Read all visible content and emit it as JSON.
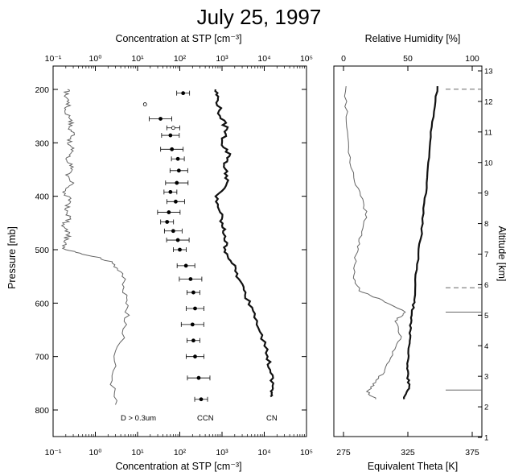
{
  "chart_data": [
    {
      "type": "line",
      "title": "July 25, 1997",
      "x_top_label": "Concentration at STP [cm⁻³]",
      "x_bottom_label": "Concentration at STP [cm⁻³]",
      "ylabel": "Pressure [mb]",
      "x_scale": "log",
      "xlim": [
        0.1,
        100000
      ],
      "ylim": [
        850,
        180
      ],
      "x_ticks": [
        0.1,
        1,
        10,
        100,
        1000,
        10000,
        100000
      ],
      "x_tick_labels": [
        "10⁻¹",
        "10⁰",
        "10¹",
        "10²",
        "10³",
        "10⁴",
        "10⁵"
      ],
      "y_ticks": [
        200,
        300,
        400,
        500,
        600,
        700,
        800
      ],
      "annotations": [
        "D > 0.3um",
        "CCN",
        "CN"
      ],
      "series": [
        {
          "name": "D > 0.3um",
          "style": "thin-line",
          "points": [
            [
              0.22,
              200
            ],
            [
              0.2,
              210
            ],
            [
              0.24,
              225
            ],
            [
              0.19,
              240
            ],
            [
              0.28,
              258
            ],
            [
              0.24,
              272
            ],
            [
              0.32,
              285
            ],
            [
              0.22,
              300
            ],
            [
              0.3,
              315
            ],
            [
              0.2,
              330
            ],
            [
              0.3,
              345
            ],
            [
              0.2,
              360
            ],
            [
              0.28,
              378
            ],
            [
              0.17,
              392
            ],
            [
              0.26,
              410
            ],
            [
              0.19,
              425
            ],
            [
              0.25,
              440
            ],
            [
              0.16,
              455
            ],
            [
              0.24,
              470
            ],
            [
              0.18,
              485
            ],
            [
              0.2,
              500
            ],
            [
              0.6,
              510
            ],
            [
              2.5,
              525
            ],
            [
              4.5,
              545
            ],
            [
              4.5,
              575
            ],
            [
              6,
              605
            ],
            [
              5.5,
              640
            ],
            [
              3,
              690
            ],
            [
              2.5,
              745
            ],
            [
              3,
              790
            ]
          ]
        },
        {
          "name": "CCN",
          "style": "points-errorbars",
          "points": [
            [
              120,
              207
            ],
            [
              15,
              228
            ],
            [
              35,
              255
            ],
            [
              70,
              272
            ],
            [
              60,
              286
            ],
            [
              65,
              312
            ],
            [
              90,
              330
            ],
            [
              95,
              352
            ],
            [
              85,
              375
            ],
            [
              60,
              392
            ],
            [
              80,
              410
            ],
            [
              55,
              430
            ],
            [
              50,
              448
            ],
            [
              70,
              465
            ],
            [
              90,
              482
            ],
            [
              100,
              500
            ],
            [
              140,
              530
            ],
            [
              180,
              555
            ],
            [
              210,
              580
            ],
            [
              230,
              610
            ],
            [
              200,
              640
            ],
            [
              210,
              670
            ],
            [
              230,
              700
            ],
            [
              280,
              740
            ],
            [
              320,
              780
            ]
          ]
        },
        {
          "name": "CN",
          "style": "thick-line",
          "points": [
            [
              700,
              200
            ],
            [
              800,
              220
            ],
            [
              900,
              250
            ],
            [
              1300,
              275
            ],
            [
              1000,
              300
            ],
            [
              1500,
              325
            ],
            [
              1100,
              345
            ],
            [
              1400,
              370
            ],
            [
              700,
              400
            ],
            [
              900,
              430
            ],
            [
              1000,
              455
            ],
            [
              1200,
              475
            ],
            [
              1200,
              500
            ],
            [
              1700,
              525
            ],
            [
              2500,
              555
            ],
            [
              3500,
              585
            ],
            [
              6000,
              620
            ],
            [
              9000,
              660
            ],
            [
              12000,
              700
            ],
            [
              14000,
              730
            ],
            [
              16000,
              760
            ],
            [
              14000,
              775
            ]
          ]
        }
      ]
    },
    {
      "type": "line",
      "x_top_label": "Relative Humidity [%]",
      "x_bottom_label": "Equivalent Theta [K]",
      "ylabel_right": "Altitude [km]",
      "x_top_ticks": [
        0,
        50,
        100
      ],
      "x_bottom_ticks": [
        275,
        325,
        375
      ],
      "y_right_ticks": [
        1,
        2,
        3,
        4,
        5,
        6,
        7,
        8,
        9,
        10,
        11,
        12,
        13
      ],
      "xlim_rh": [
        0,
        100
      ],
      "xlim_theta": [
        275,
        375
      ],
      "series": [
        {
          "name": "Relative Humidity [%]",
          "style": "thin-line",
          "points": [
            [
              2,
              12.5
            ],
            [
              2,
              11.5
            ],
            [
              4,
              10.5
            ],
            [
              8,
              9.5
            ],
            [
              15,
              8.8
            ],
            [
              18,
              8.2
            ],
            [
              12,
              7.5
            ],
            [
              10,
              7
            ],
            [
              8,
              6.3
            ],
            [
              12,
              5.8
            ],
            [
              30,
              5.5
            ],
            [
              48,
              5.1
            ],
            [
              40,
              4.8
            ],
            [
              45,
              4.3
            ],
            [
              38,
              3.8
            ],
            [
              32,
              3.2
            ],
            [
              25,
              2.8
            ],
            [
              18,
              2.5
            ],
            [
              25,
              2.25
            ]
          ]
        },
        {
          "name": "Equivalent Theta [K]",
          "style": "thick-line",
          "points": [
            [
              348,
              12.5
            ],
            [
              345,
              11.5
            ],
            [
              342,
              10.5
            ],
            [
              340,
              9.5
            ],
            [
              337,
              8.5
            ],
            [
              335,
              7.5
            ],
            [
              332,
              6.5
            ],
            [
              330,
              5.5
            ],
            [
              328,
              5
            ],
            [
              327,
              4.5
            ],
            [
              326,
              4
            ],
            [
              325,
              3.5
            ],
            [
              325,
              3
            ],
            [
              326,
              2.6
            ],
            [
              322,
              2.25
            ]
          ]
        }
      ],
      "reference_lines": [
        {
          "style": "dashed",
          "altitude": 12.4
        },
        {
          "style": "dashed",
          "altitude": 5.9
        },
        {
          "style": "solid",
          "altitude": 5.1
        },
        {
          "style": "solid",
          "altitude": 2.55
        }
      ]
    }
  ]
}
